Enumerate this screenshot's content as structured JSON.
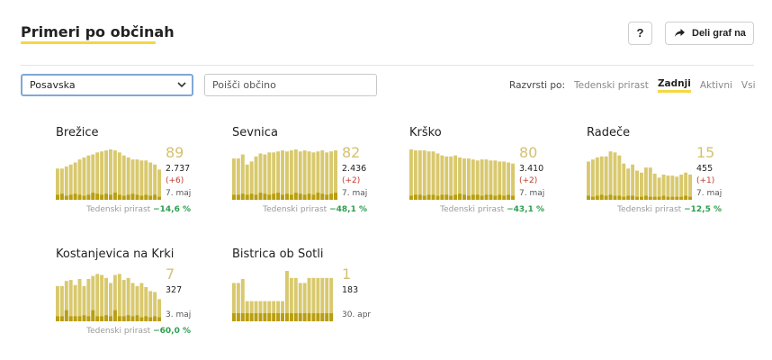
{
  "header": {
    "title": "Primeri po občinah",
    "help_label": "?",
    "share_label": "Deli graf na"
  },
  "filters": {
    "region_value": "Posavska",
    "search_placeholder": "Poišči občino"
  },
  "sort": {
    "label": "Razvrsti po:",
    "options": [
      "Tedenski prirast",
      "Zadnji",
      "Aktivni",
      "Vsi"
    ],
    "active": "Zadnji"
  },
  "colors": {
    "bar": "#d9c96e",
    "bar_dark": "#b89e10",
    "accent": "#f5d742",
    "growth": "#2e9e4e",
    "diff": "#c0392b"
  },
  "cards": [
    {
      "name": "Brežice",
      "big": "89",
      "total": "2.737",
      "diff": "(+6)",
      "date": "7. maj",
      "growth_label": "Tedenski prirast",
      "growth": "−14,6 %",
      "bars": [
        62,
        62,
        66,
        70,
        74,
        80,
        84,
        88,
        90,
        94,
        96,
        98,
        100,
        98,
        94,
        88,
        84,
        80,
        80,
        78,
        78,
        74,
        70,
        60
      ],
      "dark": [
        10,
        12,
        8,
        10,
        12,
        10,
        8,
        10,
        14,
        12,
        10,
        12,
        10,
        14,
        10,
        8,
        10,
        12,
        10,
        8,
        10,
        8,
        10,
        6
      ]
    },
    {
      "name": "Sevnica",
      "big": "82",
      "total": "2.436",
      "diff": "(+2)",
      "date": "7. maj",
      "growth_label": "Tedenski prirast",
      "growth": "−48,1 %",
      "bars": [
        82,
        82,
        90,
        70,
        76,
        86,
        92,
        90,
        94,
        94,
        96,
        98,
        96,
        98,
        100,
        96,
        98,
        96,
        94,
        96,
        98,
        94,
        96,
        98
      ],
      "dark": [
        10,
        10,
        12,
        10,
        12,
        10,
        14,
        12,
        10,
        12,
        14,
        10,
        12,
        10,
        14,
        12,
        10,
        12,
        10,
        14,
        12,
        10,
        12,
        14
      ]
    },
    {
      "name": "Krško",
      "big": "80",
      "total": "3.410",
      "diff": "(+2)",
      "date": "7. maj",
      "growth_label": "Tedenski prirast",
      "growth": "−43,1 %",
      "bars": [
        100,
        98,
        98,
        98,
        96,
        96,
        92,
        88,
        86,
        86,
        88,
        84,
        82,
        82,
        80,
        78,
        80,
        80,
        78,
        78,
        76,
        76,
        74,
        72
      ],
      "dark": [
        8,
        10,
        10,
        8,
        10,
        10,
        8,
        10,
        10,
        8,
        10,
        12,
        10,
        8,
        10,
        10,
        8,
        10,
        10,
        8,
        10,
        8,
        10,
        8
      ]
    },
    {
      "name": "Radeče",
      "big": "15",
      "total": "455",
      "diff": "(+1)",
      "date": "7. maj",
      "growth_label": "Tedenski prirast",
      "growth": "−12,5 %",
      "bars": [
        76,
        80,
        84,
        86,
        86,
        96,
        94,
        88,
        72,
        62,
        70,
        58,
        54,
        64,
        64,
        52,
        44,
        50,
        48,
        48,
        46,
        50,
        54,
        50
      ],
      "dark": [
        8,
        6,
        8,
        10,
        8,
        10,
        8,
        8,
        6,
        8,
        8,
        6,
        6,
        8,
        6,
        6,
        6,
        8,
        6,
        6,
        6,
        6,
        8,
        6
      ]
    },
    {
      "name": "Kostanjevica na Krki",
      "big": "7",
      "total": "327",
      "diff": "",
      "date": "3. maj",
      "growth_label": "Tedenski prirast",
      "growth": "−60,0 %",
      "bars": [
        70,
        70,
        80,
        82,
        72,
        84,
        70,
        84,
        90,
        94,
        92,
        86,
        76,
        92,
        94,
        82,
        86,
        76,
        70,
        76,
        68,
        60,
        58,
        44
      ],
      "dark": [
        10,
        10,
        22,
        10,
        10,
        10,
        12,
        10,
        22,
        10,
        10,
        12,
        10,
        22,
        10,
        10,
        12,
        10,
        12,
        8,
        10,
        8,
        10,
        8
      ]
    },
    {
      "name": "Bistrica ob Sotli",
      "big": "1",
      "total": "183",
      "diff": "",
      "date": "30. apr",
      "growth_label": "",
      "growth": "",
      "bars": [
        76,
        76,
        84,
        40,
        40,
        40,
        40,
        40,
        40,
        40,
        40,
        40,
        100,
        86,
        86,
        76,
        76,
        86,
        86,
        86,
        86,
        86,
        86,
        0
      ],
      "dark": [
        16,
        16,
        16,
        16,
        16,
        16,
        16,
        16,
        16,
        16,
        16,
        16,
        16,
        16,
        16,
        16,
        16,
        16,
        16,
        16,
        16,
        16,
        16,
        0
      ]
    }
  ]
}
